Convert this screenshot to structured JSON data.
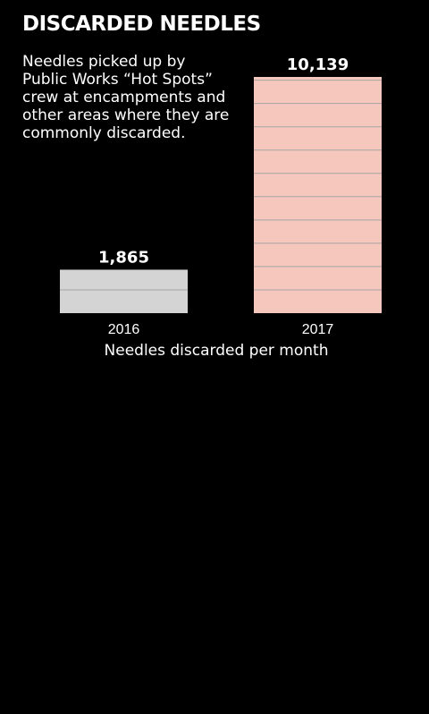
{
  "chart_data": {
    "type": "bar",
    "title": "DISCARDED NEEDLES",
    "subtitle": "Needles picked up by Public Works “Hot Spots” crew at encampments and other areas where they are commonly discarded.",
    "xlabel": "Needles discarded per month",
    "ylabel": "",
    "categories": [
      "2016",
      "2017"
    ],
    "values": [
      1865,
      10139
    ],
    "value_labels": [
      "1,865",
      "10,139"
    ],
    "ylim": [
      0,
      10139
    ],
    "grid_step": 1000,
    "grid": false,
    "colors": [
      "#d4d4d4",
      "#f6c7bd"
    ],
    "grid_line_color": "#a5a5a5",
    "background": "#000000",
    "text_color": "#ffffff"
  }
}
